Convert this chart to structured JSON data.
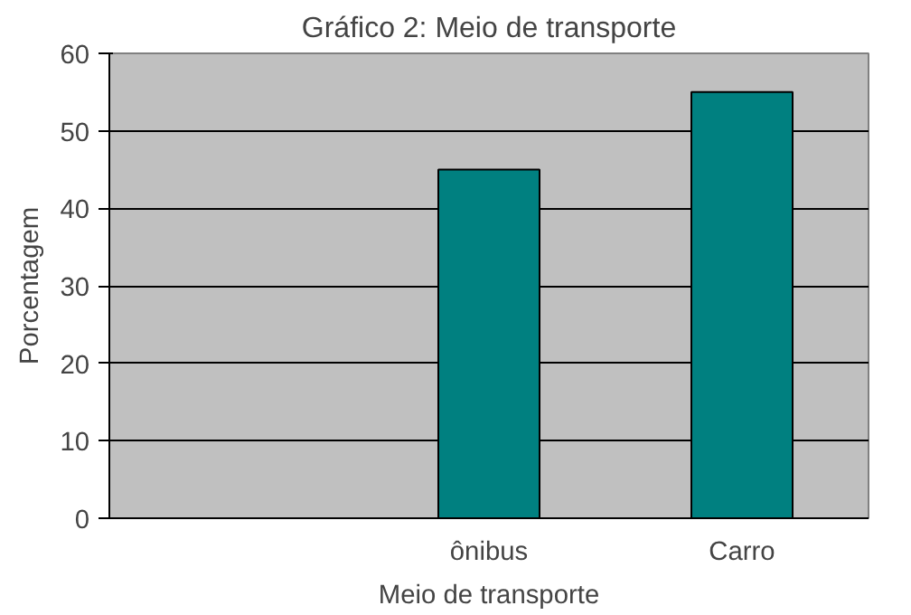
{
  "chart_data": {
    "type": "bar",
    "title": "Gráfico 2: Meio de transporte",
    "xlabel": "Meio de transporte",
    "ylabel": "Porcentagem",
    "categories": [
      null,
      "ônibus",
      "Carro"
    ],
    "values": [
      null,
      45,
      55
    ],
    "color": "#008080",
    "ylim": [
      0,
      60
    ],
    "yticks": [
      0,
      10,
      20,
      30,
      40,
      50,
      60
    ],
    "grid": "y"
  }
}
